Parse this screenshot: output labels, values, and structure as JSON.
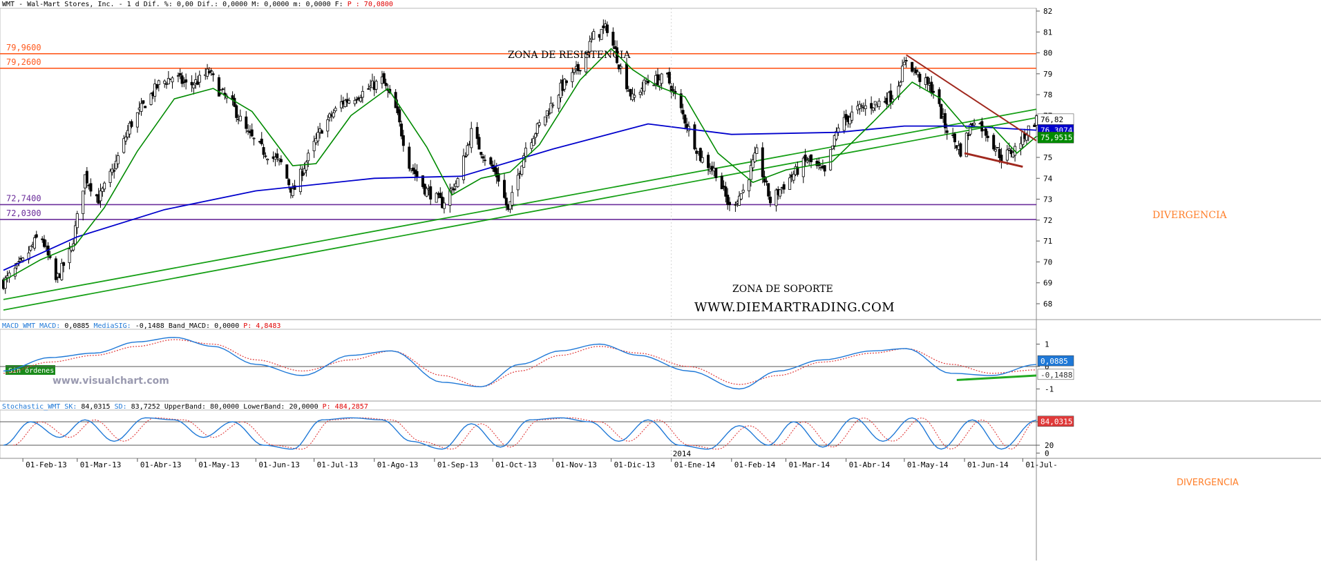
{
  "app": {
    "watermark": "www.visualchart.com",
    "site": "WWW.DIEMARTRADING.COM",
    "order_badge": "Sin órdenes"
  },
  "price_panel": {
    "header_text": "WMT - Wal-Mart Stores, Inc. -  1 d Dif. %: 0,00 Dif.: 0,0000 M: 0,0000 m: 0,0000 F:",
    "header_p_label": "P",
    "header_p_value": "70,0800",
    "ytick_labels": [
      "68",
      "69",
      "70",
      "71",
      "72",
      "73",
      "74",
      "75",
      "76",
      "77",
      "78",
      "79",
      "80",
      "81",
      "82"
    ],
    "level_labels": {
      "r1": "79,9600",
      "r2": "79,2600",
      "s1": "72,7400",
      "s2": "72,0300"
    },
    "annotations": {
      "resistance": "ZONA DE RESISTENCIA",
      "support": "ZONA DE SOPORTE",
      "divergence": "DIVERGENCIA"
    },
    "value_tags": {
      "price": "76,82",
      "ma_long": "76,3074",
      "ma_short": "75,9515"
    },
    "colors": {
      "resistance": "#ff5a1e",
      "support": "#6a2c9a",
      "ma_short": "#008a00",
      "ma_long": "#0000cc",
      "trend_up": "#17a017",
      "trend_down": "#a0281e",
      "divergence": "#ff7f2a"
    }
  },
  "macd_panel": {
    "header_name": "MACD_WMT MACD:",
    "header_macd": "0,0885",
    "header_sig_name": "MediaSIG:",
    "header_sig": "-0,1488",
    "header_band": "Band_MACD: 0,0000",
    "header_p_label": "P:",
    "header_p": "4,8483",
    "ytick_labels": [
      "1",
      "0",
      "-1"
    ],
    "value_tags": {
      "macd": "0,0885",
      "signal": "-0,1488"
    },
    "divergence": "DIVERGENCIA"
  },
  "stoch_panel": {
    "header_name": "Stochastic_WMT SK:",
    "header_sk": "84,0315",
    "header_sd_name": "SD:",
    "header_sd": "83,7252",
    "header_bands": "UpperBand: 80,0000 LowerBand: 20,0000",
    "header_p_label": "P:",
    "header_p": "484,2857",
    "ytick_labels": [
      "80",
      "20",
      "0"
    ],
    "value_tags": {
      "sk": "84,0315"
    }
  },
  "x_axis": {
    "labels": [
      "01-Feb-13",
      "01-Mar-13",
      "01-Abr-13",
      "01-May-13",
      "01-Jun-13",
      "01-Jul-13",
      "01-Ago-13",
      "01-Sep-13",
      "01-Oct-13",
      "01-Nov-13",
      "01-Dic-13",
      "01-Ene-14",
      "01-Feb-14",
      "01-Mar-14",
      "01-Abr-14",
      "01-May-14",
      "01-Jun-14",
      "01-Jul-"
    ],
    "year_label": "2014"
  },
  "chart_data": [
    {
      "type": "candlestick",
      "title": "WMT - Wal-Mart Stores, Inc. - 1 d",
      "ylim": [
        67.6,
        82.1
      ],
      "x_range": [
        "2013-01-22",
        "2014-07-08"
      ],
      "horizontal_levels": [
        79.96,
        79.26,
        72.74,
        72.03
      ],
      "close_anchors": [
        [
          "2013-01-22",
          69.0
        ],
        [
          "2013-02-01",
          70.0
        ],
        [
          "2013-02-10",
          71.4
        ],
        [
          "2013-02-18",
          69.1
        ],
        [
          "2013-02-26",
          70.6
        ],
        [
          "2013-03-05",
          74.1
        ],
        [
          "2013-03-12",
          73.0
        ],
        [
          "2013-03-20",
          74.5
        ],
        [
          "2013-03-28",
          76.5
        ],
        [
          "2013-04-05",
          77.6
        ],
        [
          "2013-04-12",
          78.5
        ],
        [
          "2013-04-20",
          78.9
        ],
        [
          "2013-04-27",
          78.4
        ],
        [
          "2013-05-03",
          78.7
        ],
        [
          "2013-05-08",
          79.1
        ],
        [
          "2013-05-13",
          78.2
        ],
        [
          "2013-05-20",
          77.5
        ],
        [
          "2013-05-28",
          76.1
        ],
        [
          "2013-06-05",
          75.3
        ],
        [
          "2013-06-14",
          74.7
        ],
        [
          "2013-06-20",
          73.3
        ],
        [
          "2013-06-26",
          74.6
        ],
        [
          "2013-07-05",
          76.4
        ],
        [
          "2013-07-15",
          77.6
        ],
        [
          "2013-07-26",
          78.1
        ],
        [
          "2013-08-05",
          78.7
        ],
        [
          "2013-08-12",
          77.3
        ],
        [
          "2013-08-19",
          74.7
        ],
        [
          "2013-08-27",
          73.5
        ],
        [
          "2013-09-05",
          72.8
        ],
        [
          "2013-09-13",
          73.9
        ],
        [
          "2013-09-20",
          76.2
        ],
        [
          "2013-09-27",
          75.0
        ],
        [
          "2013-10-04",
          74.0
        ],
        [
          "2013-10-09",
          72.4
        ],
        [
          "2013-10-18",
          75.5
        ],
        [
          "2013-10-28",
          77.0
        ],
        [
          "2013-11-05",
          78.3
        ],
        [
          "2013-11-14",
          79.2
        ],
        [
          "2013-11-22",
          80.8
        ],
        [
          "2013-11-29",
          81.2
        ],
        [
          "2013-12-05",
          79.5
        ],
        [
          "2013-12-12",
          77.8
        ],
        [
          "2013-12-19",
          78.6
        ],
        [
          "2013-12-30",
          78.8
        ],
        [
          "2014-01-08",
          76.8
        ],
        [
          "2014-01-16",
          75.0
        ],
        [
          "2014-01-24",
          74.3
        ],
        [
          "2014-01-31",
          72.6
        ],
        [
          "2014-02-07",
          73.4
        ],
        [
          "2014-02-14",
          75.2
        ],
        [
          "2014-02-21",
          72.9
        ],
        [
          "2014-03-03",
          74.0
        ],
        [
          "2014-03-12",
          74.9
        ],
        [
          "2014-03-21",
          74.2
        ],
        [
          "2014-03-28",
          76.5
        ],
        [
          "2014-04-07",
          77.3
        ],
        [
          "2014-04-17",
          77.6
        ],
        [
          "2014-04-26",
          78.0
        ],
        [
          "2014-05-02",
          79.7
        ],
        [
          "2014-05-09",
          78.8
        ],
        [
          "2014-05-16",
          78.2
        ],
        [
          "2014-05-22",
          76.5
        ],
        [
          "2014-05-30",
          75.3
        ],
        [
          "2014-06-06",
          76.9
        ],
        [
          "2014-06-13",
          76.1
        ],
        [
          "2014-06-20",
          75.0
        ],
        [
          "2014-06-27",
          75.4
        ],
        [
          "2014-07-02",
          76.1
        ],
        [
          "2014-07-08",
          76.82
        ]
      ],
      "ma_short": [
        [
          "2013-01-22",
          69.1
        ],
        [
          "2013-02-10",
          70.1
        ],
        [
          "2013-02-28",
          70.8
        ],
        [
          "2013-03-15",
          72.6
        ],
        [
          "2013-04-01",
          75.3
        ],
        [
          "2013-04-20",
          77.8
        ],
        [
          "2013-05-10",
          78.3
        ],
        [
          "2013-05-30",
          77.2
        ],
        [
          "2013-06-20",
          74.6
        ],
        [
          "2013-07-02",
          74.7
        ],
        [
          "2013-07-20",
          77.0
        ],
        [
          "2013-08-08",
          78.3
        ],
        [
          "2013-08-28",
          75.5
        ],
        [
          "2013-09-10",
          73.2
        ],
        [
          "2013-09-25",
          74.0
        ],
        [
          "2013-10-10",
          74.3
        ],
        [
          "2013-10-25",
          75.6
        ],
        [
          "2013-11-15",
          78.7
        ],
        [
          "2013-12-01",
          80.2
        ],
        [
          "2013-12-12",
          79.2
        ],
        [
          "2013-12-25",
          78.4
        ],
        [
          "2014-01-08",
          77.9
        ],
        [
          "2014-01-25",
          75.2
        ],
        [
          "2014-02-12",
          73.8
        ],
        [
          "2014-03-01",
          74.4
        ],
        [
          "2014-03-25",
          74.8
        ],
        [
          "2014-04-15",
          76.7
        ],
        [
          "2014-05-05",
          78.6
        ],
        [
          "2014-05-20",
          77.8
        ],
        [
          "2014-06-02",
          76.4
        ],
        [
          "2014-06-15",
          76.5
        ],
        [
          "2014-06-28",
          75.2
        ],
        [
          "2014-07-08",
          76.0
        ]
      ],
      "ma_long": [
        [
          "2013-01-22",
          69.6
        ],
        [
          "2013-03-01",
          71.2
        ],
        [
          "2013-04-15",
          72.5
        ],
        [
          "2013-06-01",
          73.4
        ],
        [
          "2013-08-01",
          74.0
        ],
        [
          "2013-09-15",
          74.1
        ],
        [
          "2013-11-01",
          75.4
        ],
        [
          "2013-12-20",
          76.6
        ],
        [
          "2014-02-01",
          76.1
        ],
        [
          "2014-03-28",
          76.2
        ],
        [
          "2014-05-01",
          76.5
        ],
        [
          "2014-06-01",
          76.5
        ],
        [
          "2014-07-08",
          76.3
        ]
      ],
      "trendlines_up": [
        [
          [
            "2013-01-22",
            67.7
          ],
          [
            "2014-07-08",
            76.9
          ]
        ],
        [
          [
            "2013-01-22",
            68.2
          ],
          [
            "2014-07-08",
            77.3
          ]
        ]
      ],
      "trendline_down": [
        [
          "2014-05-02",
          79.9
        ],
        [
          "2014-07-08",
          75.8
        ]
      ],
      "divergence_line": [
        [
          "2014-06-01",
          75.2
        ],
        [
          "2014-07-01",
          74.55
        ]
      ]
    },
    {
      "type": "line",
      "title": "MACD_WMT",
      "ylim": [
        -1.6,
        1.6
      ],
      "series": [
        {
          "name": "MACD",
          "x": [
            "2013-01-22",
            "2013-02-15",
            "2013-03-10",
            "2013-04-01",
            "2013-04-20",
            "2013-05-10",
            "2013-06-01",
            "2013-06-25",
            "2013-07-20",
            "2013-08-10",
            "2013-09-05",
            "2013-09-25",
            "2013-10-15",
            "2013-11-05",
            "2013-11-25",
            "2013-12-15",
            "2014-01-10",
            "2014-02-05",
            "2014-02-25",
            "2014-03-20",
            "2014-04-15",
            "2014-05-02",
            "2014-05-25",
            "2014-06-15",
            "2014-07-08"
          ],
          "values": [
            -0.2,
            0.4,
            0.6,
            1.1,
            1.3,
            0.9,
            0.1,
            -0.4,
            0.5,
            0.7,
            -0.7,
            -0.9,
            0.1,
            0.7,
            1.0,
            0.5,
            -0.2,
            -1.0,
            -0.2,
            0.3,
            0.7,
            0.8,
            -0.3,
            -0.4,
            0.0885
          ]
        },
        {
          "name": "MediaSIG",
          "x": [
            "2013-01-22",
            "2013-02-15",
            "2013-03-10",
            "2013-04-01",
            "2013-04-20",
            "2013-05-10",
            "2013-06-01",
            "2013-06-25",
            "2013-07-20",
            "2013-08-10",
            "2013-09-05",
            "2013-09-25",
            "2013-10-15",
            "2013-11-05",
            "2013-11-25",
            "2013-12-15",
            "2014-01-10",
            "2014-02-05",
            "2014-02-25",
            "2014-03-20",
            "2014-04-15",
            "2014-05-02",
            "2014-05-25",
            "2014-06-15",
            "2014-07-08"
          ],
          "values": [
            -0.3,
            0.2,
            0.5,
            0.9,
            1.2,
            1.0,
            0.3,
            -0.2,
            0.3,
            0.7,
            -0.4,
            -0.9,
            -0.2,
            0.5,
            0.9,
            0.6,
            0.0,
            -0.8,
            -0.4,
            0.2,
            0.6,
            0.8,
            0.1,
            -0.3,
            -0.1488
          ]
        }
      ],
      "divergence_line": [
        [
          "2014-05-28",
          -0.6
        ],
        [
          "2014-07-08",
          -0.4
        ]
      ]
    },
    {
      "type": "line",
      "title": "Stochastic_WMT",
      "ylim": [
        0,
        100
      ],
      "bands": [
        80,
        20
      ],
      "series": [
        {
          "name": "SK",
          "x": [
            "2013-01-22",
            "2013-02-05",
            "2013-02-20",
            "2013-03-05",
            "2013-03-20",
            "2013-04-05",
            "2013-04-20",
            "2013-05-05",
            "2013-05-20",
            "2013-06-05",
            "2013-06-20",
            "2013-07-05",
            "2013-07-20",
            "2013-08-05",
            "2013-08-20",
            "2013-09-05",
            "2013-09-20",
            "2013-10-05",
            "2013-10-20",
            "2013-11-05",
            "2013-11-20",
            "2013-12-05",
            "2013-12-20",
            "2014-01-05",
            "2014-01-20",
            "2014-02-05",
            "2014-02-20",
            "2014-03-05",
            "2014-03-20",
            "2014-04-05",
            "2014-04-20",
            "2014-05-05",
            "2014-05-20",
            "2014-06-05",
            "2014-06-20",
            "2014-07-08"
          ],
          "values": [
            20,
            80,
            40,
            85,
            30,
            90,
            85,
            40,
            80,
            20,
            10,
            85,
            90,
            85,
            30,
            10,
            75,
            15,
            85,
            90,
            80,
            30,
            85,
            20,
            10,
            70,
            20,
            80,
            15,
            90,
            30,
            90,
            10,
            85,
            10,
            84.0315
          ]
        }
      ]
    }
  ]
}
